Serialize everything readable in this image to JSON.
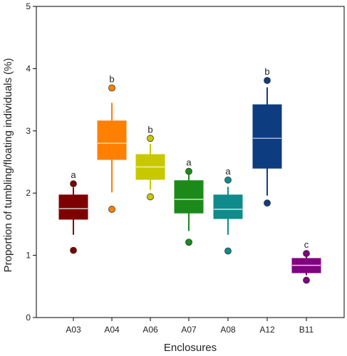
{
  "chart_data": {
    "type": "box",
    "title": "",
    "xlabel": "Enclosures",
    "ylabel": "Proportion of tumbling/floating individuals (%)",
    "ylim": [
      0,
      5
    ],
    "yticks": [
      "0",
      "1",
      "2",
      "3",
      "4",
      "5"
    ],
    "grid": false,
    "categories": [
      "A03",
      "A04",
      "A06",
      "A07",
      "A08",
      "A12",
      "B11"
    ],
    "boxes": [
      {
        "label": "A03",
        "color": "#7f0000",
        "median_color": "#cccccc",
        "whisker_low": 1.33,
        "q1": 1.58,
        "median": 1.75,
        "q3": 1.97,
        "whisker_high": 2.09,
        "outliers": [
          1.08,
          2.15
        ],
        "group": "a"
      },
      {
        "label": "A04",
        "color": "#ff8000",
        "median_color": "#ffd9b0",
        "whisker_low": 2.01,
        "q1": 2.54,
        "median": 2.8,
        "q3": 3.16,
        "whisker_high": 3.45,
        "outliers": [
          1.74,
          3.69
        ],
        "group": "b"
      },
      {
        "label": "A06",
        "color": "#c8c800",
        "median_color": "#f3f3b0",
        "whisker_low": 2.05,
        "q1": 2.22,
        "median": 2.42,
        "q3": 2.62,
        "whisker_high": 2.79,
        "outliers": [
          1.94,
          2.88
        ],
        "group": "b"
      },
      {
        "label": "A07",
        "color": "#1b8a1b",
        "median_color": "#c8ecc8",
        "whisker_low": 1.39,
        "q1": 1.68,
        "median": 1.9,
        "q3": 2.2,
        "whisker_high": 2.3,
        "outliers": [
          1.21,
          2.35
        ],
        "group": "a"
      },
      {
        "label": "A08",
        "color": "#0f8b8b",
        "median_color": "#c0ecec",
        "whisker_low": 1.33,
        "q1": 1.59,
        "median": 1.74,
        "q3": 1.97,
        "whisker_high": 2.1,
        "outliers": [
          1.07,
          2.21
        ],
        "group": "a"
      },
      {
        "label": "A12",
        "color": "#0d3d80",
        "median_color": "#aab4d4",
        "whisker_low": 1.96,
        "q1": 2.4,
        "median": 2.88,
        "q3": 3.42,
        "whisker_high": 3.7,
        "outliers": [
          1.84,
          3.81
        ],
        "group": "b"
      },
      {
        "label": "B11",
        "color": "#800080",
        "median_color": "#f0c8f0",
        "whisker_low": 0.68,
        "q1": 0.72,
        "median": 0.84,
        "q3": 0.95,
        "whisker_high": 0.98,
        "outliers": [
          0.6,
          1.03
        ],
        "group": "c"
      }
    ]
  }
}
